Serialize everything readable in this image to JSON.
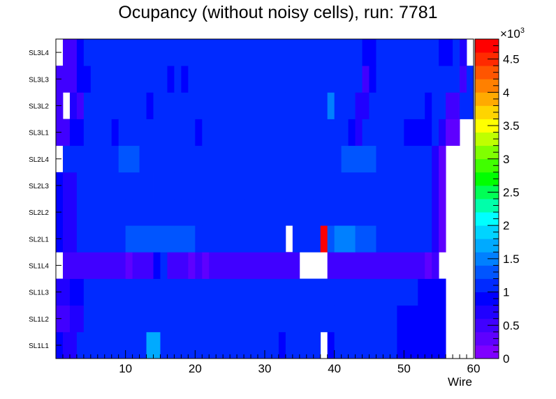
{
  "chart_data": {
    "type": "heatmap",
    "title": "Ocupancy (without noisy cells), run: 7781",
    "xlabel": "Wire",
    "ylabel": "",
    "xlim": [
      0,
      60
    ],
    "x_ticks": [
      10,
      20,
      30,
      40,
      50,
      60
    ],
    "y_categories": [
      "SL1L1",
      "SL1L2",
      "SL1L3",
      "SL1L4",
      "SL2L1",
      "SL2L2",
      "SL2L3",
      "SL2L4",
      "SL3L1",
      "SL3L2",
      "SL3L3",
      "SL3L4"
    ],
    "z_range": [
      0,
      4800
    ],
    "z_multiplier_label": "×10",
    "z_multiplier_exponent": "3",
    "z_ticks": [
      "0",
      "0.5",
      "1",
      "1.5",
      "2",
      "2.5",
      "3",
      "3.5",
      "4",
      "4.5"
    ],
    "palette": [
      "#7f00ff",
      "#5e00ff",
      "#4000ff",
      "#2000ff",
      "#0000ff",
      "#002aff",
      "#0055ff",
      "#0080ff",
      "#00aaff",
      "#00d4ff",
      "#00ffff",
      "#00ffaa",
      "#00ff55",
      "#00ff00",
      "#40ff00",
      "#80ff00",
      "#bfff00",
      "#ffff00",
      "#ffd400",
      "#ffaa00",
      "#ff8000",
      "#ff5500",
      "#ff2a00",
      "#ff0000"
    ],
    "rows": [
      {
        "layer": "SL1L1",
        "segments": [
          [
            1,
            1,
            900
          ],
          [
            2,
            3,
            700
          ],
          [
            4,
            13,
            1000
          ],
          [
            14,
            15,
            1600
          ],
          [
            16,
            25,
            1000
          ],
          [
            26,
            26,
            1100
          ],
          [
            27,
            29,
            1000
          ],
          [
            30,
            30,
            1100
          ],
          [
            31,
            32,
            1000
          ],
          [
            33,
            33,
            900
          ],
          [
            34,
            34,
            1000
          ],
          [
            35,
            37,
            1000
          ],
          [
            38,
            38,
            1100
          ],
          [
            39,
            39,
            null
          ],
          [
            40,
            40,
            900
          ],
          [
            41,
            45,
            1000
          ],
          [
            46,
            46,
            1100
          ],
          [
            47,
            49,
            1000
          ],
          [
            50,
            56,
            800
          ],
          [
            57,
            60,
            null
          ]
        ]
      },
      {
        "layer": "SL1L2",
        "segments": [
          [
            1,
            2,
            500
          ],
          [
            3,
            4,
            700
          ],
          [
            5,
            8,
            1000
          ],
          [
            9,
            9,
            1100
          ],
          [
            10,
            17,
            1000
          ],
          [
            18,
            18,
            1100
          ],
          [
            19,
            25,
            1000
          ],
          [
            26,
            29,
            1100
          ],
          [
            30,
            30,
            1000
          ],
          [
            31,
            35,
            1000
          ],
          [
            36,
            36,
            1100
          ],
          [
            37,
            39,
            1000
          ],
          [
            40,
            40,
            1100
          ],
          [
            41,
            45,
            1000
          ],
          [
            46,
            46,
            1100
          ],
          [
            47,
            47,
            1000
          ],
          [
            48,
            48,
            1100
          ],
          [
            49,
            49,
            1000
          ],
          [
            50,
            56,
            800
          ],
          [
            57,
            60,
            null
          ]
        ]
      },
      {
        "layer": "SL1L3",
        "segments": [
          [
            1,
            2,
            700
          ],
          [
            3,
            4,
            800
          ],
          [
            5,
            12,
            1000
          ],
          [
            13,
            13,
            1100
          ],
          [
            14,
            16,
            1000
          ],
          [
            17,
            17,
            1100
          ],
          [
            18,
            24,
            1000
          ],
          [
            25,
            25,
            1100
          ],
          [
            26,
            31,
            1000
          ],
          [
            32,
            32,
            1100
          ],
          [
            33,
            35,
            1000
          ],
          [
            36,
            36,
            1100
          ],
          [
            37,
            39,
            1000
          ],
          [
            40,
            40,
            1100
          ],
          [
            41,
            52,
            1000
          ],
          [
            53,
            56,
            800
          ],
          [
            57,
            60,
            null
          ]
        ]
      },
      {
        "layer": "SL1L4",
        "segments": [
          [
            1,
            1,
            null
          ],
          [
            2,
            8,
            400
          ],
          [
            9,
            10,
            400
          ],
          [
            11,
            11,
            300
          ],
          [
            12,
            14,
            400
          ],
          [
            15,
            15,
            800
          ],
          [
            16,
            16,
            1100
          ],
          [
            17,
            19,
            400
          ],
          [
            20,
            20,
            300
          ],
          [
            21,
            21,
            400
          ],
          [
            22,
            22,
            300
          ],
          [
            23,
            34,
            400
          ],
          [
            35,
            35,
            500
          ],
          [
            36,
            39,
            null
          ],
          [
            40,
            53,
            400
          ],
          [
            54,
            54,
            200
          ],
          [
            55,
            55,
            500
          ],
          [
            56,
            60,
            null
          ]
        ]
      },
      {
        "layer": "SL2L1",
        "segments": [
          [
            1,
            1,
            800
          ],
          [
            2,
            3,
            700
          ],
          [
            4,
            10,
            1000
          ],
          [
            11,
            17,
            1200
          ],
          [
            18,
            20,
            1200
          ],
          [
            21,
            25,
            1000
          ],
          [
            26,
            29,
            1100
          ],
          [
            30,
            33,
            1000
          ],
          [
            34,
            34,
            null
          ],
          [
            35,
            38,
            1000
          ],
          [
            39,
            39,
            4800
          ],
          [
            40,
            40,
            1300
          ],
          [
            41,
            43,
            1500
          ],
          [
            44,
            46,
            1200
          ],
          [
            47,
            54,
            1000
          ],
          [
            55,
            55,
            700
          ],
          [
            56,
            56,
            300
          ],
          [
            57,
            60,
            null
          ]
        ]
      },
      {
        "layer": "SL2L2",
        "segments": [
          [
            1,
            1,
            800
          ],
          [
            2,
            3,
            700
          ],
          [
            4,
            10,
            1000
          ],
          [
            11,
            11,
            1100
          ],
          [
            12,
            17,
            1000
          ],
          [
            18,
            21,
            1100
          ],
          [
            22,
            25,
            1000
          ],
          [
            26,
            27,
            1100
          ],
          [
            28,
            33,
            1000
          ],
          [
            34,
            36,
            1000
          ],
          [
            37,
            37,
            1100
          ],
          [
            38,
            38,
            1000
          ],
          [
            39,
            39,
            1100
          ],
          [
            40,
            54,
            1000
          ],
          [
            55,
            55,
            700
          ],
          [
            56,
            56,
            300
          ],
          [
            57,
            60,
            null
          ]
        ]
      },
      {
        "layer": "SL2L3",
        "segments": [
          [
            1,
            1,
            800
          ],
          [
            2,
            3,
            700
          ],
          [
            4,
            10,
            1000
          ],
          [
            11,
            11,
            1100
          ],
          [
            12,
            12,
            1000
          ],
          [
            13,
            14,
            1100
          ],
          [
            15,
            17,
            1000
          ],
          [
            18,
            18,
            1100
          ],
          [
            19,
            19,
            1000
          ],
          [
            20,
            20,
            1100
          ],
          [
            21,
            26,
            1000
          ],
          [
            27,
            28,
            1100
          ],
          [
            29,
            40,
            1000
          ],
          [
            41,
            41,
            1100
          ],
          [
            42,
            42,
            1000
          ],
          [
            43,
            43,
            1100
          ],
          [
            44,
            54,
            1000
          ],
          [
            55,
            55,
            700
          ],
          [
            56,
            56,
            300
          ],
          [
            57,
            60,
            null
          ]
        ]
      },
      {
        "layer": "SL2L4",
        "segments": [
          [
            1,
            1,
            null
          ],
          [
            2,
            9,
            1000
          ],
          [
            10,
            12,
            1200
          ],
          [
            13,
            13,
            1000
          ],
          [
            14,
            14,
            1100
          ],
          [
            15,
            17,
            1000
          ],
          [
            18,
            20,
            1100
          ],
          [
            21,
            24,
            1000
          ],
          [
            25,
            27,
            1100
          ],
          [
            28,
            28,
            1000
          ],
          [
            29,
            29,
            1100
          ],
          [
            30,
            41,
            1000
          ],
          [
            42,
            46,
            1200
          ],
          [
            47,
            54,
            1000
          ],
          [
            55,
            55,
            700
          ],
          [
            56,
            56,
            300
          ],
          [
            57,
            60,
            null
          ]
        ]
      },
      {
        "layer": "SL3L1",
        "segments": [
          [
            1,
            2,
            500
          ],
          [
            3,
            4,
            800
          ],
          [
            5,
            8,
            1000
          ],
          [
            9,
            9,
            800
          ],
          [
            10,
            20,
            1000
          ],
          [
            21,
            21,
            800
          ],
          [
            22,
            42,
            1000
          ],
          [
            43,
            43,
            800
          ],
          [
            44,
            44,
            600
          ],
          [
            45,
            50,
            1000
          ],
          [
            51,
            54,
            800
          ],
          [
            55,
            55,
            1000
          ],
          [
            56,
            56,
            700
          ],
          [
            57,
            58,
            300
          ],
          [
            59,
            60,
            null
          ]
        ]
      },
      {
        "layer": "SL3L2",
        "segments": [
          [
            1,
            1,
            500
          ],
          [
            2,
            2,
            null
          ],
          [
            3,
            3,
            700
          ],
          [
            4,
            4,
            500
          ],
          [
            5,
            13,
            1000
          ],
          [
            14,
            14,
            800
          ],
          [
            15,
            32,
            1000
          ],
          [
            33,
            33,
            1100
          ],
          [
            34,
            39,
            1000
          ],
          [
            40,
            40,
            1400
          ],
          [
            41,
            41,
            1100
          ],
          [
            42,
            43,
            1000
          ],
          [
            44,
            45,
            700
          ],
          [
            46,
            46,
            1000
          ],
          [
            47,
            48,
            1000
          ],
          [
            49,
            49,
            1100
          ],
          [
            50,
            53,
            1000
          ],
          [
            54,
            54,
            800
          ],
          [
            55,
            56,
            1000
          ],
          [
            57,
            58,
            500
          ],
          [
            59,
            60,
            1000
          ]
        ]
      },
      {
        "layer": "SL3L3",
        "segments": [
          [
            1,
            2,
            400
          ],
          [
            3,
            3,
            500
          ],
          [
            4,
            5,
            800
          ],
          [
            6,
            6,
            1000
          ],
          [
            7,
            16,
            1000
          ],
          [
            17,
            17,
            800
          ],
          [
            18,
            18,
            1000
          ],
          [
            19,
            19,
            800
          ],
          [
            20,
            32,
            1000
          ],
          [
            33,
            33,
            1100
          ],
          [
            34,
            44,
            1000
          ],
          [
            45,
            45,
            500
          ],
          [
            46,
            46,
            800
          ],
          [
            47,
            55,
            1000
          ],
          [
            56,
            56,
            1100
          ],
          [
            57,
            58,
            1000
          ],
          [
            59,
            59,
            500
          ],
          [
            60,
            60,
            1000
          ]
        ]
      },
      {
        "layer": "SL3L4",
        "segments": [
          [
            1,
            1,
            null
          ],
          [
            2,
            2,
            500
          ],
          [
            3,
            3,
            400
          ],
          [
            4,
            4,
            800
          ],
          [
            5,
            32,
            1000
          ],
          [
            33,
            33,
            1100
          ],
          [
            34,
            44,
            1000
          ],
          [
            45,
            46,
            800
          ],
          [
            47,
            52,
            1000
          ],
          [
            53,
            55,
            1000
          ],
          [
            56,
            57,
            800
          ],
          [
            58,
            58,
            1000
          ],
          [
            59,
            59,
            600
          ],
          [
            60,
            60,
            null
          ]
        ]
      }
    ]
  }
}
